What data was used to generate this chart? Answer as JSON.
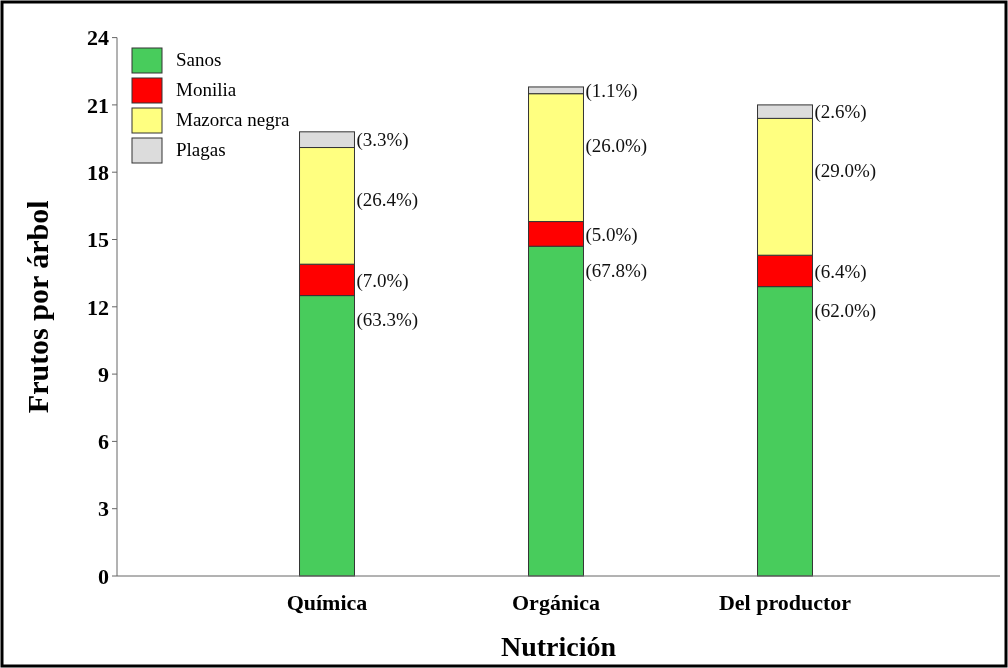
{
  "chart_data": {
    "type": "bar",
    "stacked": true,
    "xlabel": "Nutrición",
    "ylabel": "Frutos por árbol",
    "categories": [
      "Química",
      "Orgánica",
      "Del productor"
    ],
    "ylim": [
      0,
      24
    ],
    "yticks": [
      0,
      3,
      6,
      9,
      12,
      15,
      18,
      21,
      24
    ],
    "legend": "top left",
    "grid": false,
    "series": [
      {
        "name": "Sanos",
        "color": "#48cc5c",
        "values": [
          12.5,
          14.7,
          12.9
        ]
      },
      {
        "name": "Monilia",
        "color": "#ff0000",
        "values": [
          1.4,
          1.1,
          1.4
        ]
      },
      {
        "name": "Mazorca negra",
        "color": "#ffff80",
        "values": [
          5.2,
          5.7,
          6.1
        ]
      },
      {
        "name": "Plagas",
        "color": "#dcdcdc",
        "values": [
          0.7,
          0.3,
          0.6
        ]
      }
    ],
    "annotations": [
      {
        "text": "(63.3%)",
        "x": "Química",
        "y": 12.5
      },
      {
        "text": "(7.0%)",
        "x": "Química",
        "y": 13.9
      },
      {
        "text": "(26.4%)",
        "x": "Química",
        "y": 19.1
      },
      {
        "text": "(3.3%)",
        "x": "Química",
        "y": 19.8
      },
      {
        "text": "(67.8%)",
        "x": "Orgánica",
        "y": 14.7
      },
      {
        "text": "(5.0%)",
        "x": "Orgánica",
        "y": 15.8
      },
      {
        "text": "(26.0%)",
        "x": "Orgánica",
        "y": 21.5
      },
      {
        "text": "(1.1%)",
        "x": "Orgánica",
        "y": 21.8
      },
      {
        "text": "(62.0%)",
        "x": "Del productor",
        "y": 12.9
      },
      {
        "text": "(6.4%)",
        "x": "Del productor",
        "y": 14.3
      },
      {
        "text": "(29.0%)",
        "x": "Del productor",
        "y": 20.4
      },
      {
        "text": "(2.6%)",
        "x": "Del productor",
        "y": 21.0
      }
    ]
  }
}
